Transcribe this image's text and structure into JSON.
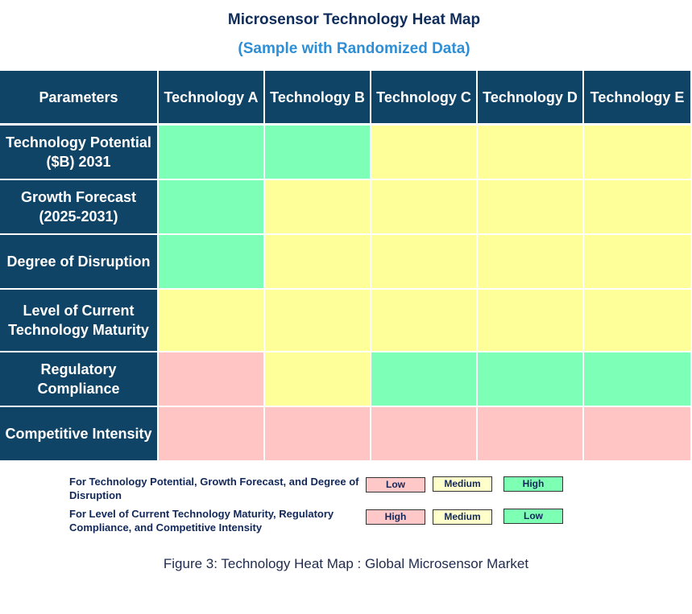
{
  "title": "Microsensor Technology Heat Map",
  "subtitle": "(Sample with Randomized Data)",
  "chart_data": {
    "type": "heatmap",
    "columns": [
      "Parameters",
      "Technology A",
      "Technology B",
      "Technology C",
      "Technology D",
      "Technology E"
    ],
    "rows": [
      "Technology Potential ($B) 2031",
      "Growth Forecast (2025-2031)",
      "Degree of Disruption",
      "Level of Current Technology Maturity",
      "Regulatory Compliance",
      "Competitive Intensity"
    ],
    "cells": [
      [
        "green",
        "green",
        "yellow",
        "yellow",
        "yellow"
      ],
      [
        "green",
        "yellow",
        "yellow",
        "yellow",
        "yellow"
      ],
      [
        "green",
        "yellow",
        "yellow",
        "yellow",
        "yellow"
      ],
      [
        "yellow",
        "yellow",
        "yellow",
        "yellow",
        "yellow"
      ],
      [
        "red",
        "yellow",
        "green",
        "green",
        "green"
      ],
      [
        "red",
        "red",
        "red",
        "red",
        "red"
      ]
    ],
    "colors": {
      "header": "#104466",
      "green": "#7dffb8",
      "yellow": "#ffff99",
      "red": "#ffc4c4"
    }
  },
  "legend": [
    {
      "text": "For Technology Potential, Growth Forecast, and Degree of Disruption",
      "labels": [
        "Low",
        "Medium",
        "High"
      ]
    },
    {
      "text": "For Level of Current Technology Maturity, Regulatory Compliance, and Competitive Intensity",
      "labels": [
        "High",
        "Medium",
        "Low"
      ]
    }
  ],
  "legend_colors": [
    "#ffc8c8",
    "#ffffcc",
    "#7dffb4"
  ],
  "caption": "Figure 3: Technology Heat Map : Global Microsensor Market"
}
